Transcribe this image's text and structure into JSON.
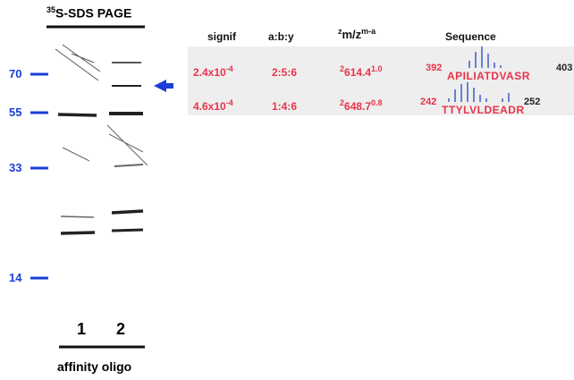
{
  "gel": {
    "title_isotope": "35",
    "title": "S-SDS PAGE",
    "markers": [
      "70",
      "55",
      "33",
      "14"
    ],
    "lanes": [
      "1",
      "2"
    ],
    "lane_caption": "affinity oligo"
  },
  "table": {
    "headers": {
      "signif": "signif",
      "ratio": "a:b:y",
      "mz_pre": "z",
      "mz": "m/z",
      "mz_sup": "m-a",
      "sequence": "Sequence"
    },
    "rows": [
      {
        "signif": "2.4x10",
        "signif_exp": "-4",
        "ratio": "2:5:6",
        "charge": "2",
        "mz": "614.4",
        "mz_sup": "1.0",
        "start": "392",
        "sequence": "APILIATDVASR",
        "end": "403"
      },
      {
        "signif": "4.6x10",
        "signif_exp": "-4",
        "ratio": "1:4:6",
        "charge": "2",
        "mz": "648.7",
        "mz_sup": "0.8",
        "start": "242",
        "sequence": "TTYLVLDEADR",
        "end": "252"
      }
    ]
  }
}
